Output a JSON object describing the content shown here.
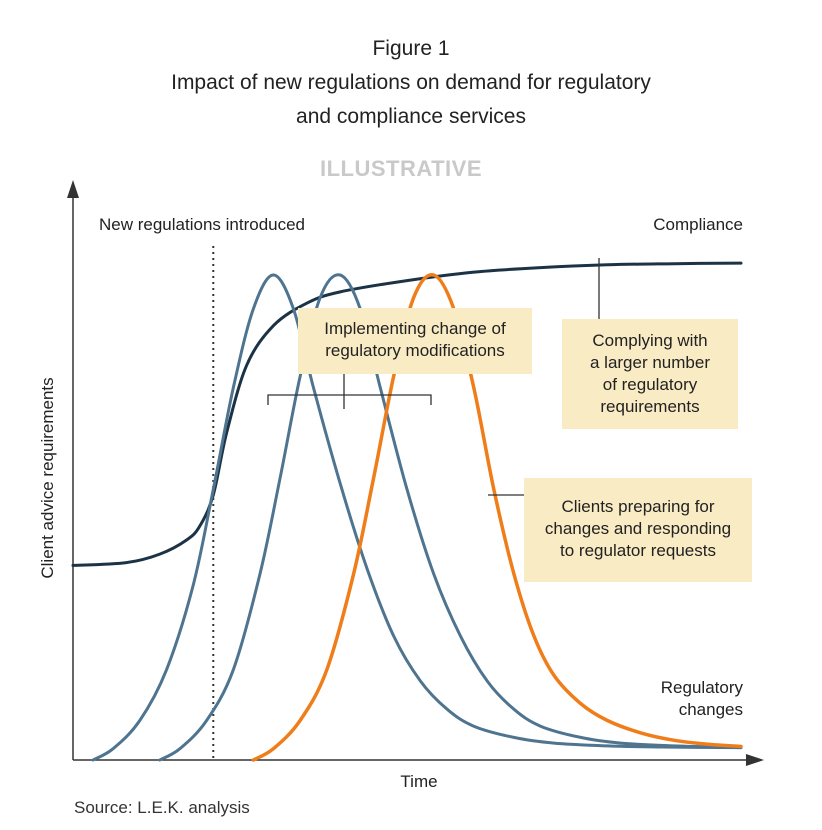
{
  "header": {
    "figure_label": "Figure 1",
    "title_line1": "Impact of new regulations on demand for regulatory",
    "title_line2": "and compliance services"
  },
  "watermark": "ILLUSTRATIVE",
  "source": "Source: L.E.K. analysis",
  "colors": {
    "compliance": "#1c3346",
    "blue_peaks": "#4f7490",
    "orange_peak": "#ef7d1a",
    "box_fill": "#f9ebc4",
    "axis": "#333333"
  },
  "chart_data": {
    "type": "line",
    "title": "Impact of new regulations on demand for regulatory and compliance services",
    "xlabel": "Time",
    "ylabel": "Client advice requirements",
    "xlim": [
      0,
      100
    ],
    "ylim": [
      0,
      100
    ],
    "grid": false,
    "event_marker": {
      "x": 21,
      "label": "New regulations introduced",
      "style": "dotted"
    },
    "series": [
      {
        "name": "Compliance",
        "kind": "compliance",
        "x": [
          0,
          8,
          13,
          17,
          19,
          21,
          23,
          26,
          30,
          35,
          40,
          50,
          60,
          70,
          80,
          90,
          100
        ],
        "y": [
          34.5,
          35,
          36.5,
          39,
          41.5,
          47,
          58,
          70,
          77,
          81,
          83,
          85,
          86.5,
          87.3,
          87.8,
          88,
          88.1
        ]
      },
      {
        "name": "",
        "kind": "blue",
        "x": [
          3,
          6,
          10,
          14,
          18,
          21,
          24,
          27,
          30,
          33,
          36,
          40,
          44,
          48,
          52,
          56,
          60,
          66,
          72,
          80,
          88,
          100
        ],
        "y": [
          0,
          2,
          7,
          16,
          31,
          48,
          66,
          80,
          86,
          80,
          66,
          49,
          34,
          22,
          14,
          9,
          6,
          4,
          3,
          2.5,
          2.3,
          2.2
        ]
      },
      {
        "name": "",
        "kind": "blue",
        "x": [
          13,
          16,
          20,
          24,
          28,
          31,
          34,
          37,
          40,
          43,
          46,
          50,
          54,
          58,
          62,
          66,
          70,
          76,
          82,
          90,
          100
        ],
        "y": [
          0,
          2,
          7,
          16,
          33,
          50,
          68,
          82,
          86,
          80,
          66,
          48,
          33,
          22,
          14,
          9,
          6,
          4,
          3,
          2.5,
          2.2
        ]
      },
      {
        "name": "",
        "kind": "orange",
        "x": [
          27,
          30,
          34,
          38,
          42,
          45,
          48,
          51,
          54,
          57,
          60,
          63,
          66,
          69,
          72,
          76,
          80,
          85,
          90,
          95,
          100
        ],
        "y": [
          0,
          2,
          7,
          16,
          33,
          50,
          68,
          82,
          86,
          80,
          66,
          48,
          33,
          22,
          15,
          10,
          7,
          4.8,
          3.5,
          2.8,
          2.4
        ]
      }
    ],
    "annotations": [
      {
        "id": "compliance",
        "text": "Compliance"
      },
      {
        "id": "regulatory_changes",
        "lines": [
          "Regulatory",
          "changes"
        ]
      },
      {
        "id": "implementing",
        "lines": [
          "Implementing change of",
          "regulatory modifications"
        ]
      },
      {
        "id": "complying",
        "lines": [
          "Complying with",
          "a larger number",
          "of regulatory",
          "requirements"
        ]
      },
      {
        "id": "clients",
        "lines": [
          "Clients preparing for",
          "changes and responding",
          "to regulator requests"
        ]
      }
    ]
  }
}
